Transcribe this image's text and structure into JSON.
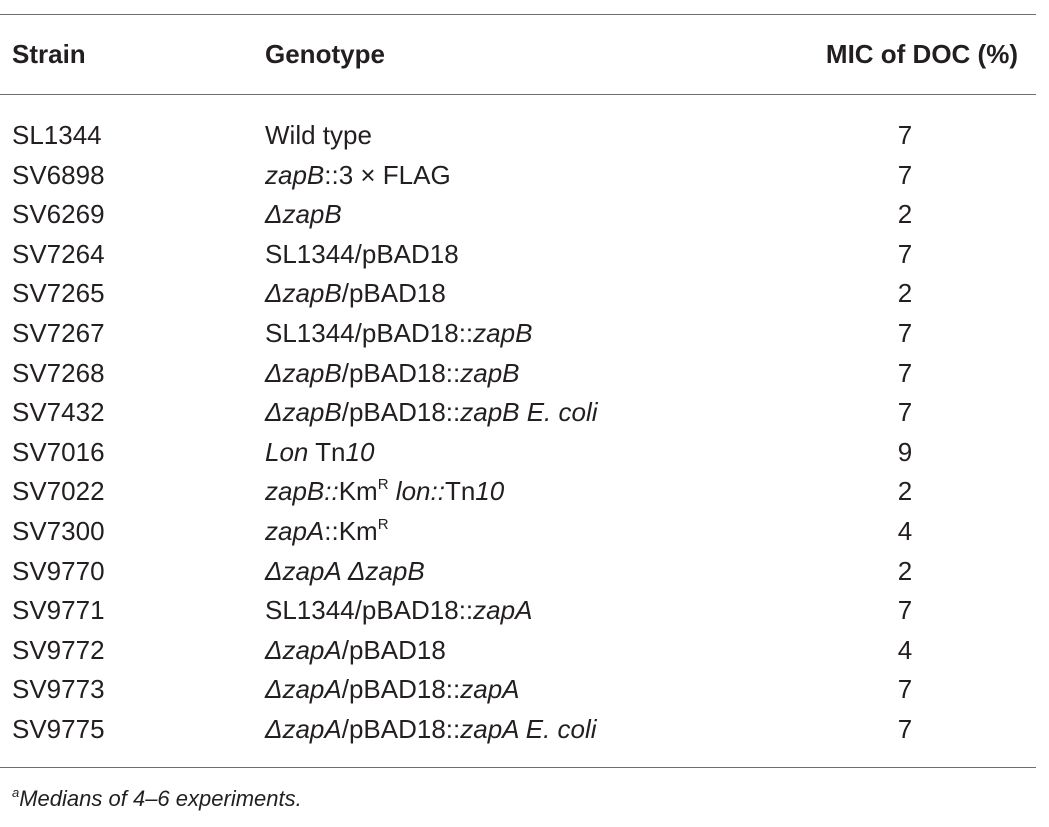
{
  "table": {
    "headers": {
      "strain": "Strain",
      "genotype": "Genotype",
      "mic": "MIC of DOC (%)"
    },
    "rows": [
      {
        "strain": "SL1344",
        "genotype": [
          {
            "t": "Wild type",
            "i": false
          }
        ],
        "mic": "7"
      },
      {
        "strain": "SV6898",
        "genotype": [
          {
            "t": "zapB",
            "i": true
          },
          {
            "t": "::3 × FLAG",
            "i": false
          }
        ],
        "mic": "7"
      },
      {
        "strain": "SV6269",
        "genotype": [
          {
            "t": "ΔzapB",
            "i": true
          }
        ],
        "mic": "2"
      },
      {
        "strain": "SV7264",
        "genotype": [
          {
            "t": "SL1344/pBAD18",
            "i": false
          }
        ],
        "mic": "7"
      },
      {
        "strain": "SV7265",
        "genotype": [
          {
            "t": "ΔzapB",
            "i": true
          },
          {
            "t": "/pBAD18",
            "i": false
          }
        ],
        "mic": "2"
      },
      {
        "strain": "SV7267",
        "genotype": [
          {
            "t": "SL1344/pBAD18::",
            "i": false
          },
          {
            "t": "zapB",
            "i": true
          }
        ],
        "mic": "7"
      },
      {
        "strain": "SV7268",
        "genotype": [
          {
            "t": "ΔzapB",
            "i": true
          },
          {
            "t": "/pBAD18::",
            "i": false
          },
          {
            "t": "zapB",
            "i": true
          }
        ],
        "mic": "7"
      },
      {
        "strain": "SV7432",
        "genotype": [
          {
            "t": "ΔzapB",
            "i": true
          },
          {
            "t": "/pBAD18::",
            "i": false
          },
          {
            "t": "zapB E. coli",
            "i": true
          }
        ],
        "mic": "7"
      },
      {
        "strain": "SV7016",
        "genotype": [
          {
            "t": "Lon",
            "i": true
          },
          {
            "t": " Tn",
            "i": false
          },
          {
            "t": "10",
            "i": true
          }
        ],
        "mic": "9"
      },
      {
        "strain": "SV7022",
        "genotype": [
          {
            "t": "zapB::",
            "i": true
          },
          {
            "t": "Km",
            "i": false
          },
          {
            "t": "R",
            "i": false,
            "sup": true
          },
          {
            "t": " ",
            "i": false
          },
          {
            "t": "lon::",
            "i": true
          },
          {
            "t": "Tn",
            "i": false
          },
          {
            "t": "10",
            "i": true
          }
        ],
        "mic": "2"
      },
      {
        "strain": "SV7300",
        "genotype": [
          {
            "t": "zapA",
            "i": true
          },
          {
            "t": "::Km",
            "i": false
          },
          {
            "t": "R",
            "i": false,
            "sup": true
          }
        ],
        "mic": "4"
      },
      {
        "strain": "SV9770",
        "genotype": [
          {
            "t": "ΔzapA ΔzapB",
            "i": true
          }
        ],
        "mic": "2"
      },
      {
        "strain": "SV9771",
        "genotype": [
          {
            "t": "SL1344/pBAD18::",
            "i": false
          },
          {
            "t": "zapA",
            "i": true
          }
        ],
        "mic": "7"
      },
      {
        "strain": "SV9772",
        "genotype": [
          {
            "t": "ΔzapA",
            "i": true
          },
          {
            "t": "/pBAD18",
            "i": false
          }
        ],
        "mic": "4"
      },
      {
        "strain": "SV9773",
        "genotype": [
          {
            "t": "ΔzapA",
            "i": true
          },
          {
            "t": "/pBAD18::",
            "i": false
          },
          {
            "t": "zapA",
            "i": true
          }
        ],
        "mic": "7"
      },
      {
        "strain": "SV9775",
        "genotype": [
          {
            "t": "ΔzapA",
            "i": true
          },
          {
            "t": "/pBAD18::",
            "i": false
          },
          {
            "t": "zapA E. coli",
            "i": true
          }
        ],
        "mic": "7"
      }
    ],
    "footnote": {
      "marker": "a",
      "text": "Medians of 4–6 experiments."
    }
  }
}
